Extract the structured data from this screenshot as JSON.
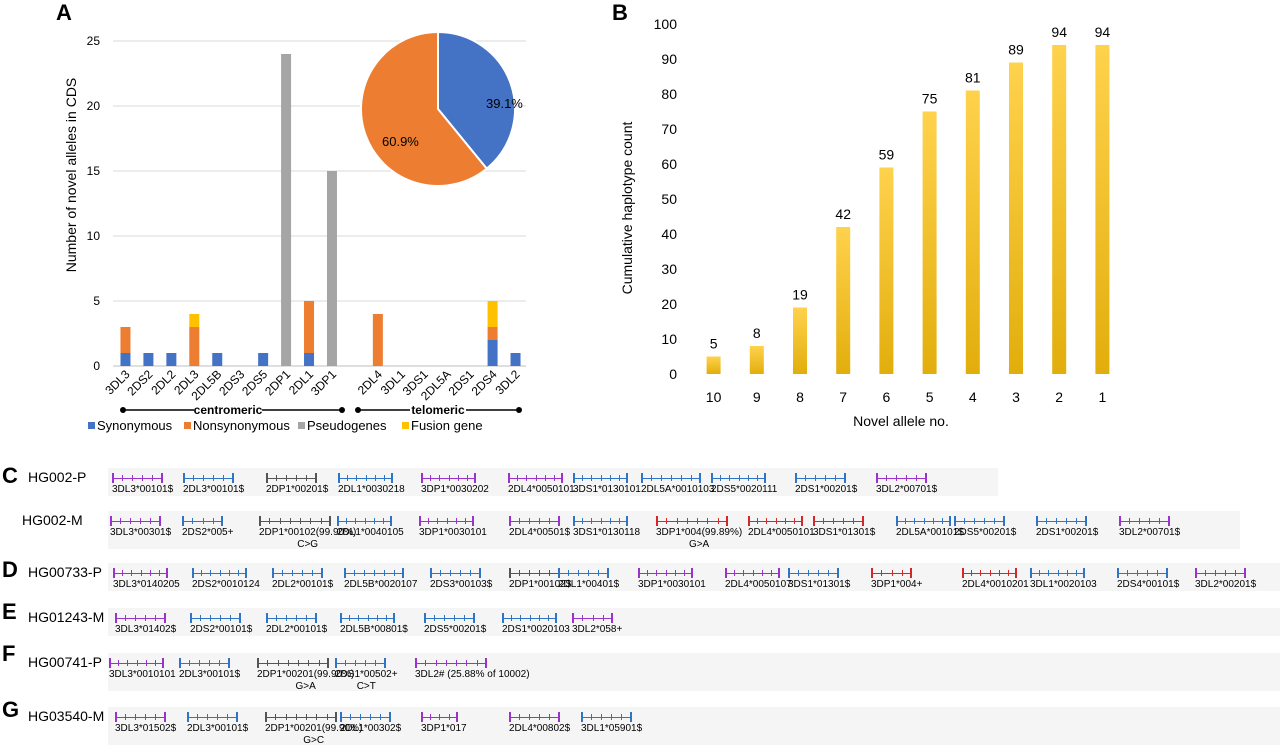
{
  "colors": {
    "synonymous": "#4472c4",
    "nonsynonymous": "#ed7d31",
    "pseudogenes": "#a5a5a5",
    "fusion": "#ffc000",
    "bar_top": "#ffd24d",
    "bar_bottom": "#e2ae0c",
    "gene_purple": "#9933cc",
    "gene_blue": "#2e75c7",
    "gene_gray": "#555555",
    "gene_red": "#d62728"
  },
  "panel_letters": {
    "a": "A",
    "b": "B",
    "c": "C",
    "d": "D",
    "e": "E",
    "f": "F",
    "g": "G"
  },
  "group_labels": {
    "centromeric": "centromeric",
    "telomeric": "telomeric"
  },
  "chart_data": [
    {
      "id": "A",
      "type": "bar",
      "stacked": true,
      "ylabel": "Number of novel alleles in CDS",
      "xlabel": "",
      "ylim": [
        0,
        25
      ],
      "yticks": [
        0,
        5,
        10,
        15,
        20,
        25
      ],
      "categories": [
        "3DL3",
        "2DS2",
        "2DL2",
        "2DL3",
        "2DL5B",
        "2DS3",
        "2DS5",
        "2DP1",
        "2DL1",
        "3DP1",
        "",
        "2DL4",
        "3DL1",
        "3DS1",
        "2DL5A",
        "2DS1",
        "2DS4",
        "3DL2"
      ],
      "series": [
        {
          "name": "Synonymous",
          "values": [
            1,
            1,
            1,
            0,
            1,
            0,
            1,
            0,
            1,
            0,
            0,
            0,
            0,
            0,
            0,
            0,
            2,
            1
          ]
        },
        {
          "name": "Nonsynonymous",
          "values": [
            2,
            0,
            0,
            3,
            0,
            0,
            0,
            0,
            4,
            0,
            0,
            4,
            0,
            0,
            0,
            0,
            1,
            0
          ]
        },
        {
          "name": "Pseudogenes",
          "values": [
            0,
            0,
            0,
            0,
            0,
            0,
            0,
            24,
            0,
            15,
            0,
            0,
            0,
            0,
            0,
            0,
            0,
            0
          ]
        },
        {
          "name": "Fusion gene",
          "values": [
            0,
            0,
            0,
            1,
            0,
            0,
            0,
            0,
            0,
            0,
            0,
            0,
            0,
            0,
            0,
            0,
            2,
            0
          ]
        }
      ],
      "legend_position": "bottom",
      "inset_pie": {
        "type": "pie",
        "slices": [
          {
            "label": "39.1%",
            "value": 39.1,
            "color": "#4472c4"
          },
          {
            "label": "60.9%",
            "value": 60.9,
            "color": "#ed7d31"
          }
        ]
      }
    },
    {
      "id": "B",
      "type": "bar",
      "xlabel": "Novel allele no.",
      "ylabel": "Cumulative haplotype count",
      "ylim": [
        0,
        100
      ],
      "yticks": [
        0,
        10,
        20,
        30,
        40,
        50,
        60,
        70,
        80,
        90,
        100
      ],
      "categories": [
        "10",
        "9",
        "8",
        "7",
        "6",
        "5",
        "4",
        "3",
        "2",
        "1"
      ],
      "values": [
        5,
        8,
        19,
        42,
        59,
        75,
        81,
        89,
        94,
        94
      ]
    }
  ],
  "haplotypes": [
    {
      "letter": "C",
      "name": "HG002-P",
      "genes": [
        {
          "label": "3DL3*00101$",
          "color": "purple"
        },
        {
          "label": "2DL3*00101$",
          "color": "blue"
        },
        {
          "label": "2DP1*00201$",
          "color": "gray"
        },
        {
          "label": "2DL1*0030218",
          "color": "blue"
        },
        {
          "label": "3DP1*0030202",
          "color": "purple"
        },
        {
          "label": "2DL4*0050101",
          "color": "purple"
        },
        {
          "label": "3DS1*0130101",
          "color": "blue"
        },
        {
          "label": "2DL5A*0010103",
          "color": "blue"
        },
        {
          "label": "2DS5*0020111",
          "color": "blue"
        },
        {
          "label": "2DS1*00201$",
          "color": "blue"
        },
        {
          "label": "3DL2*00701$",
          "color": "purple"
        }
      ]
    },
    {
      "letter": "",
      "name": "HG002-M",
      "genes": [
        {
          "label": "3DL3*00301$",
          "color": "purple"
        },
        {
          "label": "2DS2*005+",
          "color": "blue"
        },
        {
          "label": "2DP1*00102(99.90%)",
          "color": "gray",
          "mut": "C>G"
        },
        {
          "label": "2DL1*0040105",
          "color": "blue"
        },
        {
          "label": "3DP1*0030101",
          "color": "purple"
        },
        {
          "label": "2DL4*00501$",
          "color": "purple"
        },
        {
          "label": "3DS1*0130118",
          "color": "blue"
        },
        {
          "label": "3DP1*004(99.89%)",
          "color": "red",
          "mut": "G>A"
        },
        {
          "label": "2DL4*0050101",
          "color": "red"
        },
        {
          "label": "3DS1*01301$",
          "color": "red"
        },
        {
          "label": "2DL5A*00101$",
          "color": "blue"
        },
        {
          "label": "2DS5*00201$",
          "color": "blue"
        },
        {
          "label": "2DS1*00201$",
          "color": "blue"
        },
        {
          "label": "3DL2*00701$",
          "color": "purple"
        }
      ]
    },
    {
      "letter": "D",
      "name": "HG00733-P",
      "genes": [
        {
          "label": "3DL3*0140205",
          "color": "purple"
        },
        {
          "label": "2DS2*0010124",
          "color": "blue"
        },
        {
          "label": "2DL2*00101$",
          "color": "blue"
        },
        {
          "label": "2DL5B*0020107",
          "color": "blue"
        },
        {
          "label": "2DS3*00103$",
          "color": "blue"
        },
        {
          "label": "2DP1*00102$",
          "color": "gray"
        },
        {
          "label": "2DL1*00401$",
          "color": "blue"
        },
        {
          "label": "3DP1*0030101",
          "color": "purple"
        },
        {
          "label": "2DL4*0050107",
          "color": "purple"
        },
        {
          "label": "3DS1*01301$",
          "color": "blue"
        },
        {
          "label": "3DP1*004+",
          "color": "red"
        },
        {
          "label": "2DL4*0010201",
          "color": "red"
        },
        {
          "label": "3DL1*0020103",
          "color": "blue"
        },
        {
          "label": "2DS4*00101$",
          "color": "blue"
        },
        {
          "label": "3DL2*00201$",
          "color": "purple"
        }
      ]
    },
    {
      "letter": "E",
      "name": "HG01243-M",
      "genes": [
        {
          "label": "3DL3*01402$",
          "color": "purple"
        },
        {
          "label": "2DS2*00101$",
          "color": "blue"
        },
        {
          "label": "2DL2*00101$",
          "color": "blue"
        },
        {
          "label": "2DL5B*00801$",
          "color": "blue"
        },
        {
          "label": "2DS5*00201$",
          "color": "blue"
        },
        {
          "label": "2DS1*0020103",
          "color": "blue"
        },
        {
          "label": "3DL2*058+",
          "color": "purple"
        }
      ]
    },
    {
      "letter": "F",
      "name": "HG00741-P",
      "genes": [
        {
          "label": "3DL3*0010101",
          "color": "purple"
        },
        {
          "label": "2DL3*00101$",
          "color": "blue"
        },
        {
          "label": "2DP1*00201(99.90%)",
          "color": "gray",
          "mut": "G>A"
        },
        {
          "label": "2DS1*00502+",
          "color": "blue",
          "mut": "C>T"
        },
        {
          "label": "3DL2# (25.88% of 10002)",
          "color": "purple"
        }
      ]
    },
    {
      "letter": "G",
      "name": "HG03540-M",
      "genes": [
        {
          "label": "3DL3*01502$",
          "color": "purple"
        },
        {
          "label": "2DL3*00101$",
          "color": "blue"
        },
        {
          "label": "2DP1*00201(99.90%)",
          "color": "gray",
          "mut": "G>C"
        },
        {
          "label": "2DL1*00302$",
          "color": "blue"
        },
        {
          "label": "3DP1*017",
          "color": "purple"
        },
        {
          "label": "2DL4*00802$",
          "color": "purple"
        },
        {
          "label": "3DL1*05901$",
          "color": "blue"
        }
      ]
    }
  ]
}
